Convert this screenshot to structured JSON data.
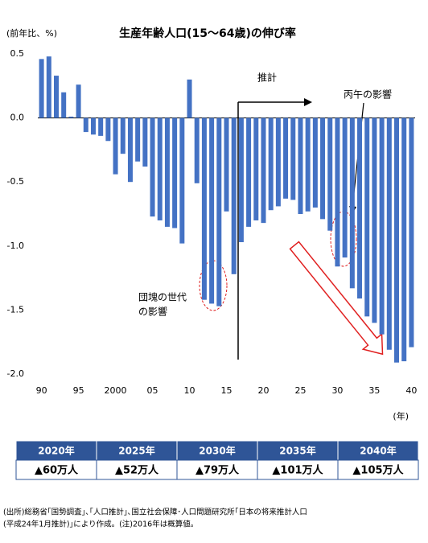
{
  "chart_data": {
    "type": "bar",
    "title": "生産年齢人口(15～64歳)の伸び率",
    "y_label": "(前年比、%)",
    "x_label": "(年)",
    "color": "#4472c4",
    "x": [
      1990,
      1991,
      1992,
      1993,
      1994,
      1995,
      1996,
      1997,
      1998,
      1999,
      2000,
      2001,
      2002,
      2003,
      2004,
      2005,
      2006,
      2007,
      2008,
      2009,
      2010,
      2011,
      2012,
      2013,
      2014,
      2015,
      2016,
      2017,
      2018,
      2019,
      2020,
      2021,
      2022,
      2023,
      2024,
      2025,
      2026,
      2027,
      2028,
      2029,
      2030,
      2031,
      2032,
      2033,
      2034,
      2035,
      2036,
      2037,
      2038,
      2039,
      2040
    ],
    "values": [
      0.46,
      0.48,
      0.33,
      0.2,
      0.01,
      0.26,
      -0.11,
      -0.13,
      -0.14,
      -0.18,
      -0.44,
      -0.28,
      -0.5,
      -0.34,
      -0.38,
      -0.77,
      -0.8,
      -0.85,
      -0.86,
      -0.98,
      0.3,
      -0.51,
      -1.42,
      -1.45,
      -1.47,
      -0.73,
      -1.22,
      -0.97,
      -0.85,
      -0.8,
      -0.82,
      -0.72,
      -0.69,
      -0.63,
      -0.64,
      -0.75,
      -0.73,
      -0.7,
      -0.79,
      -0.88,
      -1.16,
      -1.09,
      -1.33,
      -1.41,
      -1.55,
      -1.6,
      -1.69,
      -1.81,
      -1.91,
      -1.9,
      -1.79
    ],
    "xlim": [
      1989.5,
      2040.5
    ],
    "xticks": [
      {
        "value": 1990,
        "label": "90"
      },
      {
        "value": 1995,
        "label": "95"
      },
      2000,
      {
        "value": 2005,
        "label": "05"
      },
      {
        "value": 2010,
        "label": "10"
      },
      {
        "value": 2015,
        "label": "15"
      },
      {
        "value": 2020,
        "label": "20"
      },
      {
        "value": 2025,
        "label": "25"
      },
      {
        "value": 2030,
        "label": "30"
      },
      {
        "value": 2035,
        "label": "35"
      },
      {
        "value": 2040,
        "label": "40"
      }
    ],
    "ylim": [
      -2.0,
      0.5
    ],
    "yticks": [
      0.5,
      {
        "value": 0,
        "label": "0.0"
      },
      -0.5,
      {
        "value": -1,
        "label": "-1.0"
      },
      -1.5,
      {
        "value": -2,
        "label": "-2.0"
      }
    ],
    "grid": false,
    "annotations": [
      "推計",
      "丙午の影響",
      "団塊の世代",
      "の影響"
    ]
  },
  "table": {
    "columns": [
      "2020年",
      "2025年",
      "2030年",
      "2035年",
      "2040年"
    ],
    "rows": [
      [
        "▲60万人",
        "▲52万人",
        "▲79万人",
        "▲101万人",
        "▲105万人"
      ]
    ]
  },
  "source": [
    "(出所)総務省｢国勢調査｣､｢人口推計｣､国立社会保障･人口問題研究所｢日本の将来推計人口",
    "(平成24年1月推計)｣により作成。(注)2016年は概算値。"
  ]
}
